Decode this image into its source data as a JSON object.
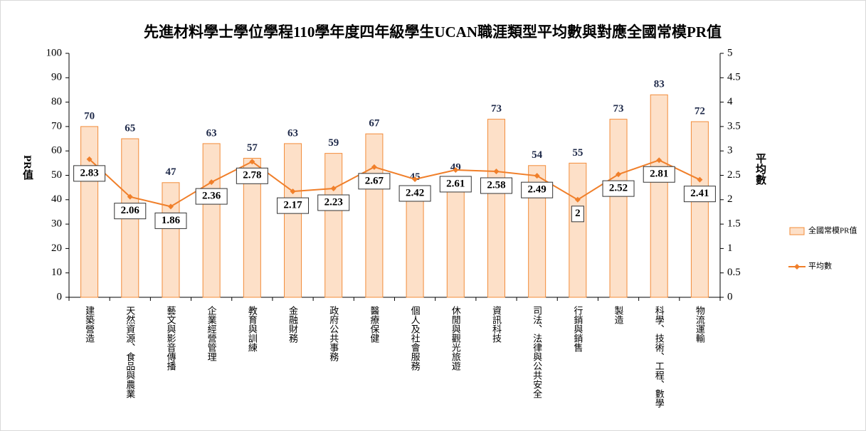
{
  "chart_data": {
    "type": "bar_line",
    "title": "先進材料學士學位學程110學年度四年級學生UCAN職涯類型平均數與對應全國常模PR值",
    "y_label": "PR值",
    "y2_label": "平均數",
    "categories": [
      "建築營造",
      "天然資源、食品與農業",
      "藝文與影音傳播",
      "企業經營管理",
      "教育與訓練",
      "金融財務",
      "政府公共事務",
      "醫療保健",
      "個人及社會服務",
      "休閒與觀光旅遊",
      "資訊科技",
      "司法、法律與公共安全",
      "行銷與銷售",
      "製造",
      "科學、技術、工程、數學",
      "物流運輸"
    ],
    "series": [
      {
        "name": "全國常模PR值",
        "type": "bar",
        "color": "#fde0c8",
        "edge": "#f28c3a",
        "values": [
          70,
          65,
          47,
          63,
          57,
          63,
          59,
          67,
          45,
          49,
          73,
          54,
          55,
          73,
          83,
          72
        ]
      },
      {
        "name": "平均數",
        "type": "line",
        "axis": "y2",
        "color": "#f07f2a",
        "values": [
          2.83,
          2.06,
          1.86,
          2.36,
          2.78,
          2.17,
          2.23,
          2.67,
          2.42,
          2.61,
          2.58,
          2.49,
          2,
          2.52,
          2.81,
          2.41
        ]
      }
    ],
    "ylim": [
      0,
      100
    ],
    "yticks": [
      0,
      10,
      20,
      30,
      40,
      50,
      60,
      70,
      80,
      90,
      100
    ],
    "y2lim": [
      0,
      5
    ],
    "y2ticks": [
      0,
      0.5,
      1,
      1.5,
      2,
      2.5,
      3,
      3.5,
      4,
      4.5,
      5
    ],
    "legend": "right"
  }
}
